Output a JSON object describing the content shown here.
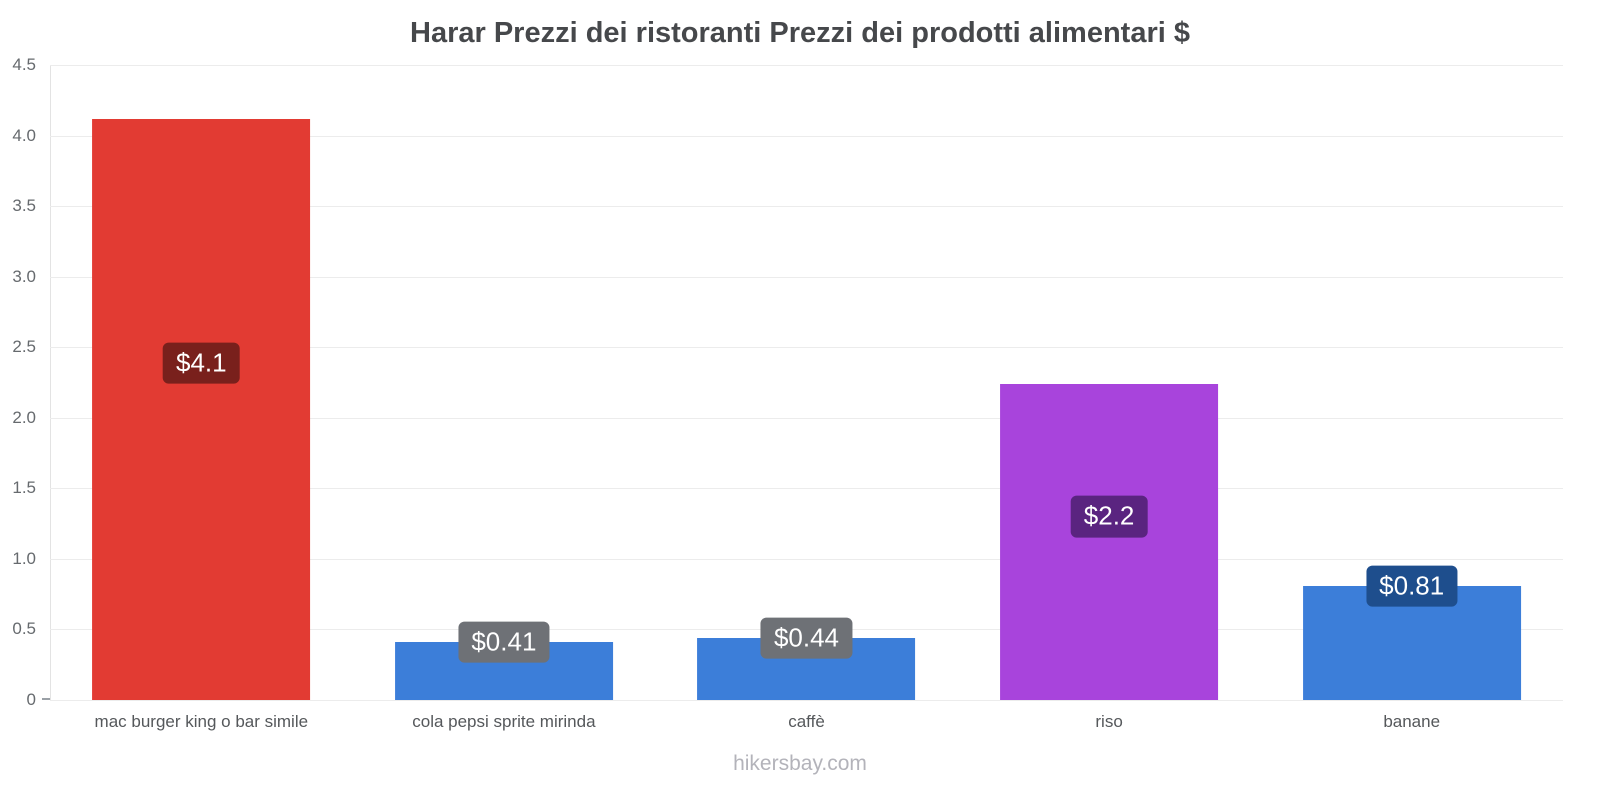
{
  "page": {
    "watermark": "hikersbay.com"
  },
  "chart_data": {
    "type": "bar",
    "title": "Harar Prezzi dei ristoranti Prezzi dei prodotti alimentari $",
    "categories": [
      "mac burger king o bar simile",
      "cola pepsi sprite mirinda",
      "caffè",
      "riso",
      "banane"
    ],
    "values": [
      4.12,
      0.41,
      0.44,
      2.24,
      0.81
    ],
    "value_labels": [
      "$4.1",
      "$0.41",
      "$0.44",
      "$2.2",
      "$0.81"
    ],
    "bar_colors": [
      "#e23b33",
      "#3c7ed9",
      "#3c7ed9",
      "#a844dc",
      "#3c7ed9"
    ],
    "badge_colors": [
      "#79201c",
      "#6e7176",
      "#6e7176",
      "#5a2480",
      "#1e4e8d"
    ],
    "xlabel": "",
    "ylabel": "",
    "ylim": [
      0,
      4.5
    ],
    "ytick_labels": [
      "0",
      "0.5",
      "1.0",
      "1.5",
      "2.0",
      "2.5",
      "3.0",
      "3.5",
      "4.0",
      "4.5"
    ],
    "grid": true,
    "legend": "none",
    "currency": "$"
  }
}
